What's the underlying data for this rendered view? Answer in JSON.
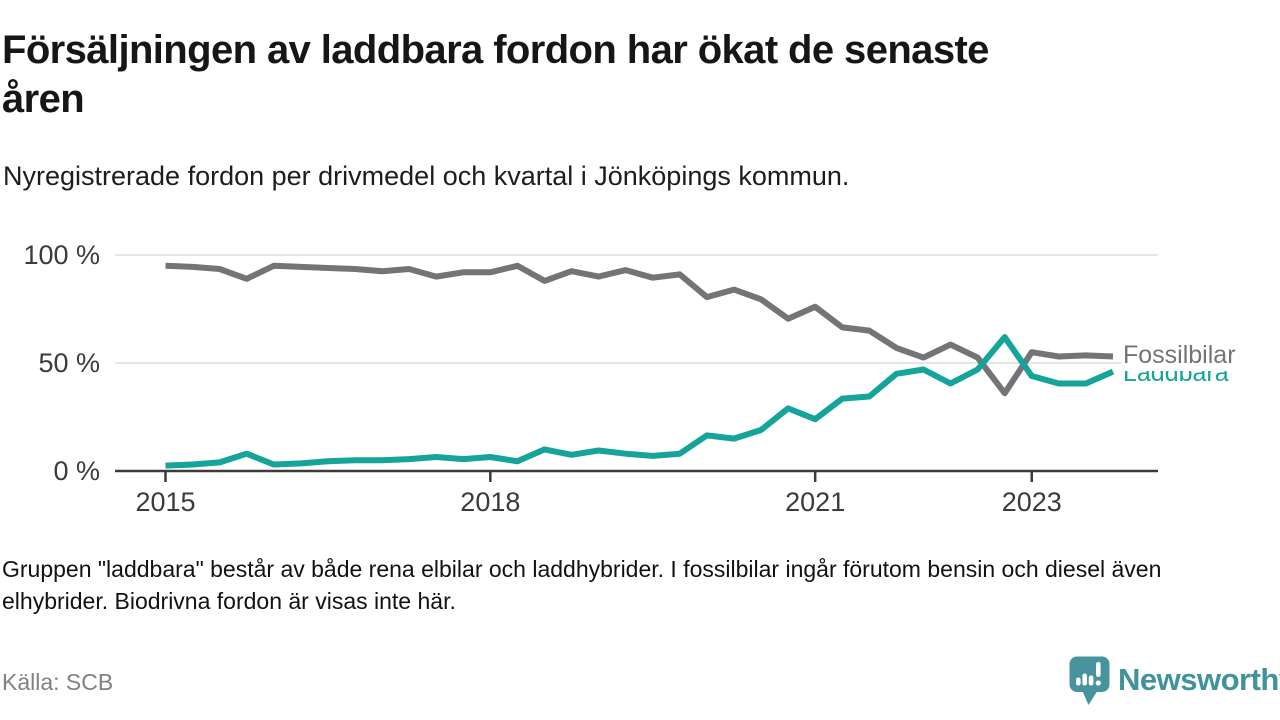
{
  "title": {
    "full": "Försäljningen av laddbara fordon har ökat de senaste åren",
    "line1": "Försäljningen av laddbara fordon har ökat de senaste",
    "line2": "åren"
  },
  "subtitle": "Nyregistrerade fordon per drivmedel och kvartal i Jönköpings kommun.",
  "footnote": {
    "full": "Gruppen \"laddbara\" består av både rena elbilar och laddhybrider. I fossilbilar ingår förutom bensin och diesel även elhybrider. Biodrivna fordon är visas inte här.",
    "line1": "Gruppen \"laddbara\" består av både rena elbilar och laddhybrider. I fossilbilar ingår förutom bensin och diesel även",
    "line2": "elhybrider. Biodrivna fordon är visas inte här."
  },
  "source": "Källa: SCB",
  "brand": {
    "name": "Newsworthy",
    "icon": "chart-speech-bubble-icon",
    "icon_color": "#47949e",
    "wordmark_color": "#40929c"
  },
  "colors": {
    "fossil_line": "#747478",
    "laddbara_line": "#14a499",
    "grid": "#dedede",
    "axis": "#3b3b3b",
    "tick_text": "#3b3b3b"
  },
  "chart_data": {
    "type": "line",
    "title": "Försäljningen av laddbara fordon har ökat de senaste åren",
    "subtitle": "Nyregistrerade fordon per drivmedel och kvartal i Jönköpings kommun.",
    "x_unit": "quarter",
    "x": [
      "2015 Q1",
      "2015 Q2",
      "2015 Q3",
      "2015 Q4",
      "2016 Q1",
      "2016 Q2",
      "2016 Q3",
      "2016 Q4",
      "2017 Q1",
      "2017 Q2",
      "2017 Q3",
      "2017 Q4",
      "2018 Q1",
      "2018 Q2",
      "2018 Q3",
      "2018 Q4",
      "2019 Q1",
      "2019 Q2",
      "2019 Q3",
      "2019 Q4",
      "2020 Q1",
      "2020 Q2",
      "2020 Q3",
      "2020 Q4",
      "2021 Q1",
      "2021 Q2",
      "2021 Q3",
      "2021 Q4",
      "2022 Q1",
      "2022 Q2",
      "2022 Q3",
      "2022 Q4",
      "2023 Q1",
      "2023 Q2",
      "2023 Q3",
      "2023 Q4"
    ],
    "series": [
      {
        "name": "Fossilbilar",
        "color": "#747478",
        "unit": "%",
        "values": [
          95,
          94.5,
          93.5,
          89,
          95,
          94.5,
          94,
          93.5,
          92.5,
          93.5,
          90,
          92,
          92,
          95,
          88,
          92.5,
          90,
          93,
          89.5,
          91,
          80.5,
          84,
          79.5,
          70.5,
          76,
          66.5,
          65,
          57,
          52.5,
          58.5,
          52.5,
          36,
          55,
          53,
          53.5,
          53
        ]
      },
      {
        "name": "Laddbara",
        "color": "#14a499",
        "unit": "%",
        "values": [
          2.5,
          3,
          4,
          8,
          3,
          3.5,
          4.5,
          5,
          5,
          5.5,
          6.5,
          5.5,
          6.5,
          4.5,
          10,
          7.5,
          9.5,
          8,
          7,
          8,
          16.5,
          15,
          19,
          29,
          24,
          33.5,
          34.5,
          45,
          47,
          40.5,
          47,
          62,
          44,
          40.5,
          40.5,
          46
        ]
      }
    ],
    "ylim": [
      0,
      100
    ],
    "yticks": [
      {
        "value": 0,
        "label": "0 %"
      },
      {
        "value": 50,
        "label": "50 %"
      },
      {
        "value": 100,
        "label": "100 %"
      }
    ],
    "xticks": [
      {
        "index": 0,
        "label": "2015"
      },
      {
        "index": 12,
        "label": "2018"
      },
      {
        "index": 24,
        "label": "2021"
      },
      {
        "index": 32,
        "label": "2023"
      }
    ],
    "grid": "horizontal",
    "legend_position": "end-of-line-labels"
  }
}
